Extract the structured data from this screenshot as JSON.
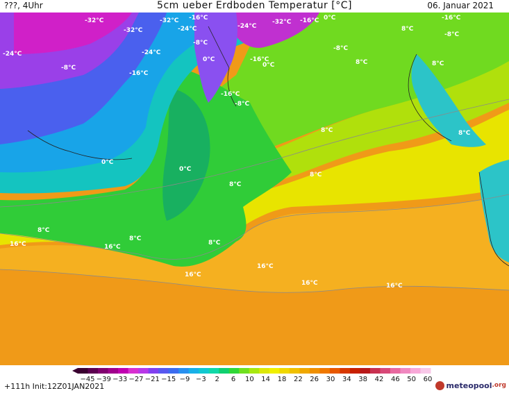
{
  "header": {
    "left": "???, 4Uhr",
    "title": "5cm ueber Erdboden Temperatur [°C]",
    "date": "06. Januar 2021"
  },
  "legend": {
    "ticks": [
      "-45",
      "-39",
      "-33",
      "-27",
      "-21",
      "-15",
      "-9",
      "-3",
      "2",
      "6",
      "10",
      "14",
      "18",
      "22",
      "26",
      "30",
      "34",
      "38",
      "42",
      "46",
      "50",
      "60"
    ],
    "colors": [
      "#3a0030",
      "#5c0050",
      "#80006e",
      "#a0008c",
      "#c000b0",
      "#d830d0",
      "#b838e8",
      "#8040f0",
      "#5858f0",
      "#3c6cf0",
      "#2890f0",
      "#18b0e8",
      "#10c8d0",
      "#10d8a8",
      "#10d070",
      "#30d838",
      "#70e020",
      "#a8e810",
      "#dce808",
      "#f0f000",
      "#f0d800",
      "#f0c000",
      "#f0a800",
      "#f09000",
      "#f07800",
      "#e85800",
      "#d83800",
      "#c82000",
      "#b81818",
      "#c83050",
      "#d84878",
      "#e868a0",
      "#f088c0",
      "#f8a8d8",
      "#f8c8e8"
    ]
  },
  "labels": [
    "-32°C",
    "-32°C",
    "-16°C",
    "-24°C",
    "-32°C",
    "-24°C",
    "-32°C",
    "-16°C",
    "0°C",
    "-16°C",
    "-24°C",
    "-24°C",
    "-16°C",
    "-8°C",
    "-8°C",
    "-8°C",
    "-16°C",
    "-8°C",
    "-16°C",
    "0°C",
    "0°C",
    "-8°C",
    "8°C",
    "8°C",
    "8°C",
    "0°C",
    "0°C",
    "8°C",
    "16°C",
    "16°C",
    "16°C",
    "16°C",
    "16°C",
    "16°C",
    "8°C",
    "8°C",
    "8°C",
    "8°C",
    "8°C",
    "8°C"
  ],
  "footer": {
    "run": "+111h  Init:12Z01JAN2021",
    "logo": "meteopool",
    "logo_domain": ".org"
  }
}
